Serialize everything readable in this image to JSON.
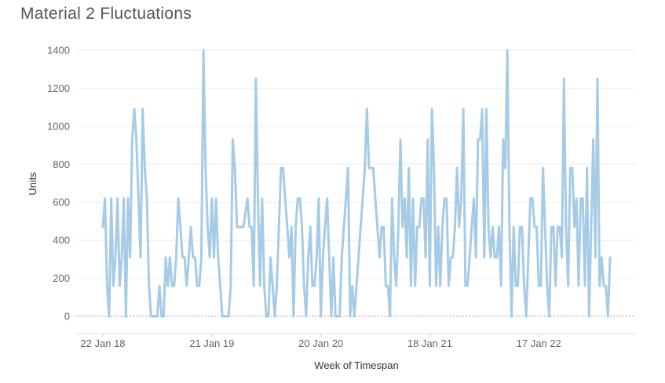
{
  "chart_data": {
    "type": "line",
    "title": "Material 2 Fluctuations",
    "xlabel": "Week of Timespan",
    "ylabel": "Units",
    "ylim": [
      0,
      1400
    ],
    "yticks": [
      "0",
      "200",
      "400",
      "600",
      "800",
      "1000",
      "1200",
      "1400"
    ],
    "xtick_labels": [
      "22 Jan 18",
      "21 Jan 19",
      "20 Jan 20",
      "18 Jan 21",
      "17 Jan 22"
    ],
    "xtick_weeks": [
      0,
      52,
      104,
      156,
      208
    ],
    "grid": true,
    "legend": "none",
    "line_color": "#a6cbe6",
    "series": [
      {
        "values": [
          470,
          620,
          170,
          0,
          620,
          160,
          310,
          620,
          160,
          310,
          620,
          0,
          620,
          310,
          930,
          1090,
          930,
          620,
          310,
          1090,
          780,
          620,
          160,
          0,
          0,
          0,
          0,
          160,
          0,
          0,
          310,
          160,
          310,
          160,
          160,
          310,
          620,
          470,
          310,
          310,
          160,
          310,
          470,
          310,
          310,
          160,
          160,
          310,
          1400,
          780,
          470,
          310,
          620,
          310,
          620,
          310,
          160,
          0,
          0,
          0,
          0,
          160,
          930,
          780,
          470,
          470,
          470,
          470,
          540,
          620,
          470,
          470,
          160,
          1250,
          620,
          160,
          620,
          160,
          0,
          0,
          310,
          160,
          0,
          160,
          470,
          780,
          780,
          620,
          470,
          310,
          470,
          0,
          470,
          620,
          620,
          470,
          160,
          0,
          310,
          470,
          160,
          160,
          310,
          620,
          0,
          310,
          470,
          620,
          310,
          0,
          310,
          0,
          0,
          0,
          310,
          470,
          620,
          780,
          0,
          160,
          0,
          160,
          310,
          470,
          620,
          780,
          1090,
          780,
          780,
          780,
          620,
          470,
          310,
          470,
          470,
          160,
          160,
          0,
          620,
          310,
          160,
          470,
          930,
          470,
          620,
          310,
          780,
          160,
          620,
          160,
          470,
          470,
          620,
          620,
          310,
          930,
          160,
          1090,
          780,
          160,
          470,
          160,
          470,
          620,
          620,
          160,
          310,
          310,
          470,
          780,
          470,
          620,
          1090,
          160,
          160,
          310,
          470,
          620,
          310,
          930,
          930,
          1090,
          310,
          1090,
          470,
          310,
          470,
          310,
          310,
          470,
          160,
          930,
          780,
          1400,
          470,
          0,
          470,
          160,
          160,
          470,
          470,
          160,
          0,
          310,
          620,
          620,
          470,
          470,
          160,
          160,
          780,
          470,
          160,
          0,
          470,
          470,
          160,
          470,
          470,
          310,
          1250,
          470,
          160,
          780,
          780,
          470,
          620,
          160,
          620,
          620,
          160,
          780,
          0,
          470,
          930,
          310,
          1250,
          160,
          310,
          160,
          160,
          0,
          310
        ]
      }
    ]
  }
}
